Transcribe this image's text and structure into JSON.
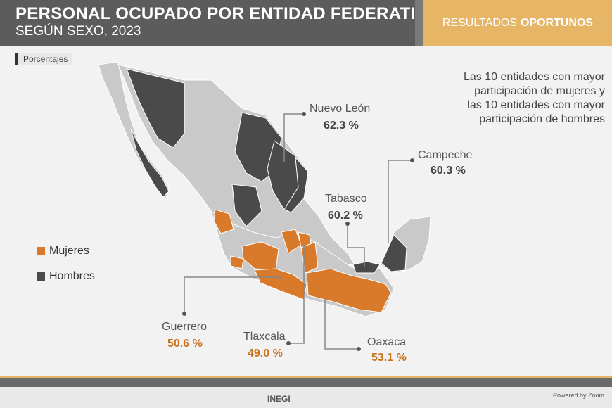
{
  "header": {
    "title": "PERSONAL OCUPADO POR ENTIDAD FEDERATIVA",
    "subtitle": "SEGÚN SEXO, 2023",
    "tag_prefix": "RESULTADOS",
    "tag_bold": "OPORTUNOS"
  },
  "unit_label": "Porcentajes",
  "note": "Las 10 entidades con mayor participación de mujeres y las 10 entidades con mayor participación de hombres",
  "legend": [
    {
      "label": "Mujeres",
      "color": "#d97a2b"
    },
    {
      "label": "Hombres",
      "color": "#4a4a4a"
    }
  ],
  "colors": {
    "other": "#c9c9c9",
    "women": "#d97a2b",
    "men": "#4a4a4a",
    "border": "#ffffff",
    "lines": "#888888"
  },
  "callouts": [
    {
      "name": "Nuevo León",
      "value": "62.3 %",
      "group": "Hombres"
    },
    {
      "name": "Campeche",
      "value": "60.3 %",
      "group": "Hombres"
    },
    {
      "name": "Tabasco",
      "value": "60.2 %",
      "group": "Hombres"
    },
    {
      "name": "Guerrero",
      "value": "50.6 %",
      "group": "Mujeres"
    },
    {
      "name": "Tlaxcala",
      "value": "49.0 %",
      "group": "Mujeres"
    },
    {
      "name": "Oaxaca",
      "value": "53.1 %",
      "group": "Mujeres"
    }
  ],
  "footer": {
    "logo": "INEGI",
    "credit": "Powered by Zoom"
  }
}
